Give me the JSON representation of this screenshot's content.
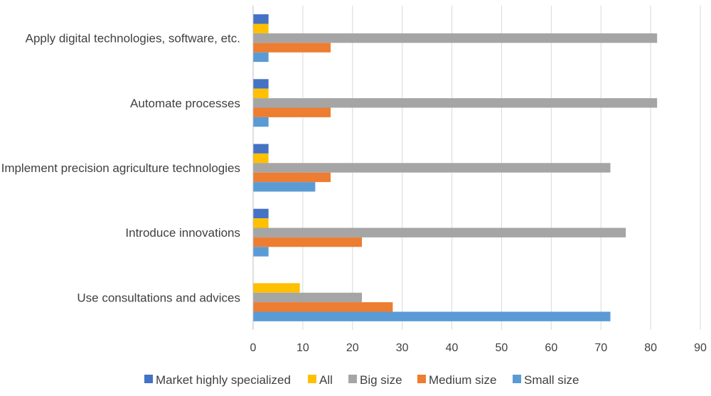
{
  "chart_data": {
    "type": "bar",
    "orientation": "horizontal",
    "categories": [
      "Apply digital technologies, software, etc.",
      "Automate processes",
      "Implement precision agriculture technologies",
      "Introduce innovations",
      "Use consultations and advices"
    ],
    "series": [
      {
        "name": "Market highly specialized",
        "color": "#4472C4",
        "values": [
          3.1,
          3.1,
          3.1,
          3.1,
          0
        ]
      },
      {
        "name": "All",
        "color": "#FFC000",
        "values": [
          3.1,
          3.1,
          3.1,
          3.1,
          9.4
        ]
      },
      {
        "name": "Big size",
        "color": "#A5A5A5",
        "values": [
          81.3,
          81.3,
          71.9,
          75.0,
          21.9
        ]
      },
      {
        "name": "Medium size",
        "color": "#ED7D31",
        "values": [
          15.6,
          15.6,
          15.6,
          21.9,
          28.1
        ]
      },
      {
        "name": "Small size",
        "color": "#5B9BD5",
        "values": [
          3.1,
          3.1,
          12.5,
          3.1,
          71.9
        ]
      }
    ],
    "xlim": [
      0,
      90
    ],
    "xticks": [
      "0",
      "10",
      "20",
      "30",
      "40",
      "50",
      "60",
      "70",
      "80",
      "90"
    ],
    "grid": true,
    "legend_position": "bottom"
  }
}
